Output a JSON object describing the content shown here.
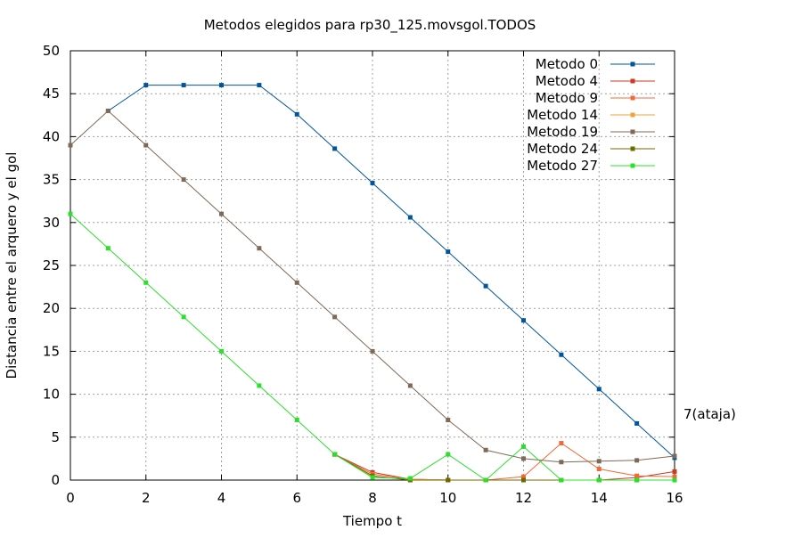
{
  "chart_data": {
    "type": "line",
    "title": "Metodos elegidos para rp30_125.movsgol.TODOS",
    "xlabel": "Tiempo t",
    "ylabel": "Distancia entre el arquero y el gol",
    "xlim": [
      0,
      16
    ],
    "ylim": [
      0,
      50
    ],
    "x_ticks": [
      0,
      2,
      4,
      6,
      8,
      10,
      12,
      14,
      16
    ],
    "y_ticks": [
      0,
      5,
      10,
      15,
      20,
      25,
      30,
      35,
      40,
      45,
      50
    ],
    "grid": true,
    "legend_position": "top-right",
    "annotation": "7(ataja)",
    "series": [
      {
        "name": "Metodo 0",
        "color": "#00569e",
        "points": [
          [
            1,
            43
          ],
          [
            2,
            46
          ],
          [
            3,
            46
          ],
          [
            4,
            46
          ],
          [
            5,
            46
          ],
          [
            6,
            42.6
          ],
          [
            7,
            38.6
          ],
          [
            8,
            34.6
          ],
          [
            9,
            30.6
          ],
          [
            10,
            26.6
          ],
          [
            11,
            22.6
          ],
          [
            12,
            18.6
          ],
          [
            13,
            14.6
          ],
          [
            14,
            10.6
          ],
          [
            15,
            6.6
          ],
          [
            16,
            2.6
          ]
        ]
      },
      {
        "name": "Metodo 4",
        "color": "#c83a22",
        "points": [
          [
            7,
            3
          ],
          [
            8,
            0.9
          ],
          [
            9,
            0.1
          ],
          [
            10,
            0
          ],
          [
            11,
            0
          ],
          [
            12,
            0
          ],
          [
            13,
            0
          ],
          [
            14,
            0
          ],
          [
            15,
            0.3
          ],
          [
            16,
            1
          ]
        ]
      },
      {
        "name": "Metodo 9",
        "color": "#f06a38",
        "points": [
          [
            7,
            3
          ],
          [
            8,
            0.7
          ],
          [
            9,
            0.1
          ],
          [
            10,
            0
          ],
          [
            11,
            0
          ],
          [
            12,
            0.4
          ],
          [
            13,
            4.3
          ],
          [
            14,
            1.3
          ],
          [
            15,
            0.5
          ],
          [
            16,
            0.4
          ]
        ]
      },
      {
        "name": "Metodo 14",
        "color": "#f2a23a",
        "points": [
          [
            7,
            3
          ],
          [
            8,
            0.4
          ],
          [
            9,
            0.1
          ],
          [
            10,
            0
          ],
          [
            11,
            0
          ],
          [
            12,
            0
          ],
          [
            13,
            0
          ],
          [
            14,
            0
          ],
          [
            15,
            0
          ],
          [
            16,
            0
          ]
        ]
      },
      {
        "name": "Metodo 19",
        "color": "#7e6a57",
        "points": [
          [
            0,
            39
          ],
          [
            1,
            43
          ],
          [
            2,
            39
          ],
          [
            3,
            35
          ],
          [
            4,
            31
          ],
          [
            5,
            27
          ],
          [
            6,
            23
          ],
          [
            7,
            19
          ],
          [
            8,
            15
          ],
          [
            9,
            11
          ],
          [
            10,
            7
          ],
          [
            11,
            3.5
          ],
          [
            12,
            2.5
          ],
          [
            13,
            2.1
          ],
          [
            14,
            2.2
          ],
          [
            15,
            2.3
          ],
          [
            16,
            2.8
          ]
        ]
      },
      {
        "name": "Metodo 24",
        "color": "#6d6a00",
        "points": [
          [
            7,
            3
          ],
          [
            8,
            0.5
          ],
          [
            9,
            0
          ],
          [
            10,
            0
          ],
          [
            11,
            0
          ],
          [
            12,
            0
          ],
          [
            13,
            0
          ],
          [
            14,
            0
          ],
          [
            15,
            0
          ],
          [
            16,
            0
          ]
        ]
      },
      {
        "name": "Metodo 27",
        "color": "#2ae02a",
        "points": [
          [
            0,
            31
          ],
          [
            1,
            27
          ],
          [
            2,
            23
          ],
          [
            3,
            19
          ],
          [
            4,
            15
          ],
          [
            5,
            11
          ],
          [
            6,
            7
          ],
          [
            7,
            3
          ],
          [
            8,
            0.3
          ],
          [
            9,
            0.2
          ],
          [
            10,
            3
          ],
          [
            11,
            0
          ],
          [
            12,
            3.9
          ],
          [
            13,
            0
          ],
          [
            14,
            0
          ],
          [
            15,
            0
          ],
          [
            16,
            0
          ]
        ]
      }
    ]
  }
}
